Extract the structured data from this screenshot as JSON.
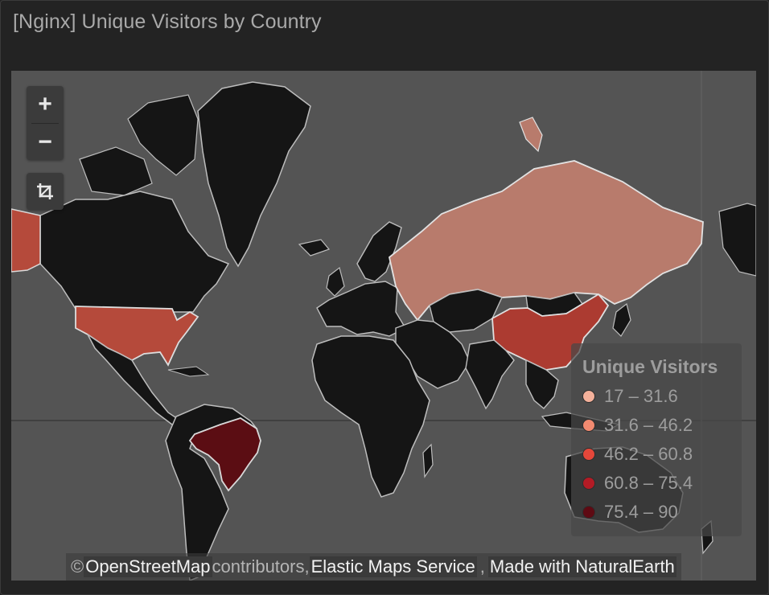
{
  "panel": {
    "title": "[Nginx] Unique Visitors by Country"
  },
  "controls": {
    "zoom_in_label": "+",
    "zoom_out_label": "−",
    "fit_icon": "crop-icon"
  },
  "legend": {
    "title": "Unique Visitors",
    "ranges": [
      {
        "label": "17 – 31.6",
        "color": "#f4b19b"
      },
      {
        "label": "31.6 – 46.2",
        "color": "#f28a70"
      },
      {
        "label": "46.2 – 60.8",
        "color": "#e5473a"
      },
      {
        "label": "60.8 – 75.4",
        "color": "#b31b25"
      },
      {
        "label": "75.4 – 90",
        "color": "#5e0a13"
      }
    ]
  },
  "countries": [
    {
      "name": "Russia",
      "color": "#b87b6c"
    },
    {
      "name": "China",
      "color": "#ac3b31"
    },
    {
      "name": "United States",
      "color": "#b54a3b"
    },
    {
      "name": "Alaska",
      "color": "#b54a3b"
    },
    {
      "name": "Brazil",
      "color": "#5b0d13"
    }
  ],
  "attribution": {
    "prefix": "© ",
    "osm": "OpenStreetMap",
    "contributors": " contributors, ",
    "ems": "Elastic Maps Service",
    "comma": ",",
    "natural_earth": "Made with NaturalEarth"
  }
}
